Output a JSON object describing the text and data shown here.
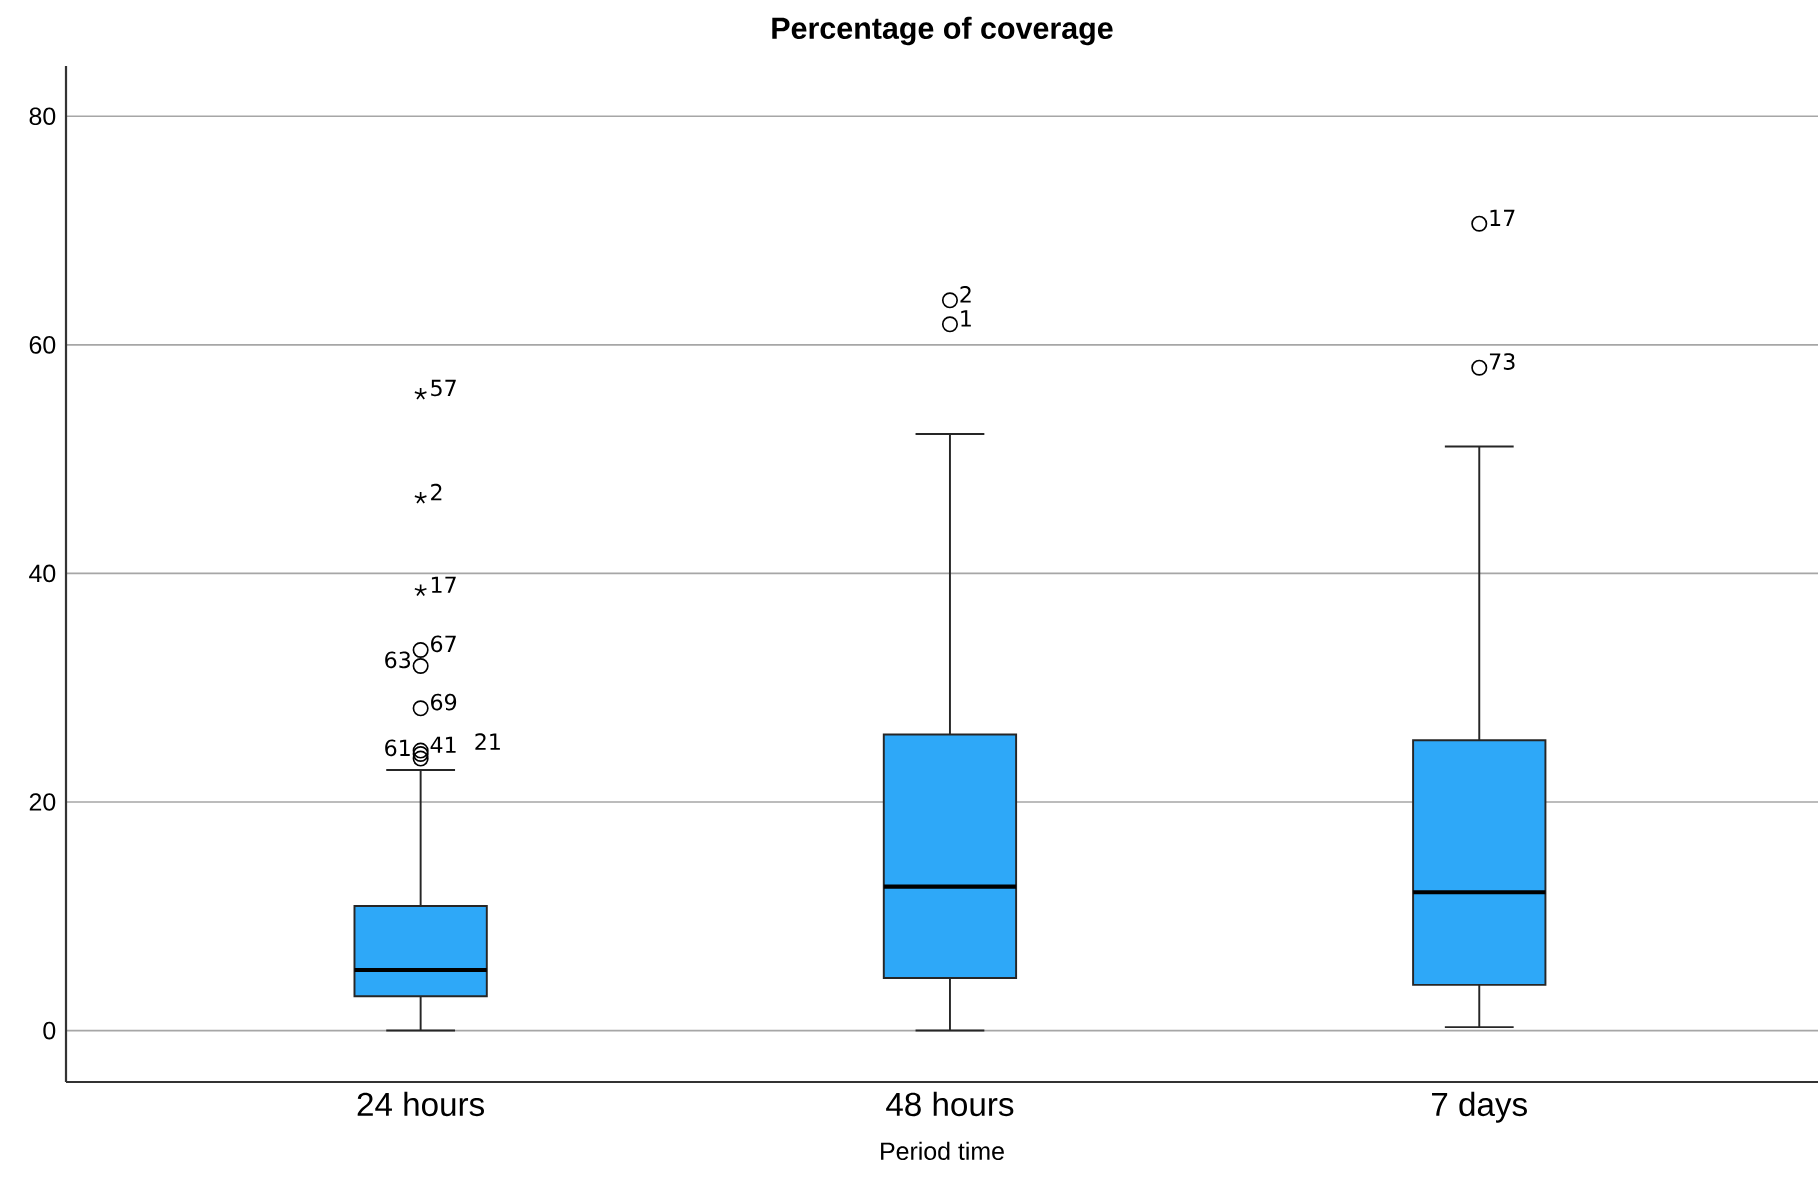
{
  "chart_data": {
    "type": "box",
    "title": "Percentage of coverage",
    "xlabel": "Period time",
    "categories": [
      "24 hours",
      "48 hours",
      "7 days"
    ],
    "series": [
      {
        "color": "#2ea8f8",
        "boxes": [
          {
            "low": 0,
            "q1": 3.0,
            "median": 5.3,
            "q3": 10.9,
            "high": 22.8,
            "outliers": [
              55.7,
              46.6,
              38.5,
              33.3,
              31.9,
              28.2,
              24.5,
              24.2,
              23.8
            ]
          },
          {
            "low": 0,
            "q1": 4.6,
            "median": 12.6,
            "q3": 25.9,
            "high": 52.2,
            "outliers": [
              63.9,
              61.8
            ]
          },
          {
            "low": 0.3,
            "q1": 4.0,
            "median": 12.1,
            "q3": 25.4,
            "high": 51.1,
            "outliers": [
              70.6,
              58.0
            ]
          }
        ]
      }
    ],
    "ylim": [
      -4.5,
      84.4
    ],
    "yticks": [
      0,
      20,
      40,
      60,
      80
    ],
    "grid": "y",
    "annotations": [
      "57",
      "2",
      "17",
      "67",
      "63",
      "69",
      "41",
      "61",
      "21",
      "2",
      "1",
      "17",
      "73"
    ]
  }
}
